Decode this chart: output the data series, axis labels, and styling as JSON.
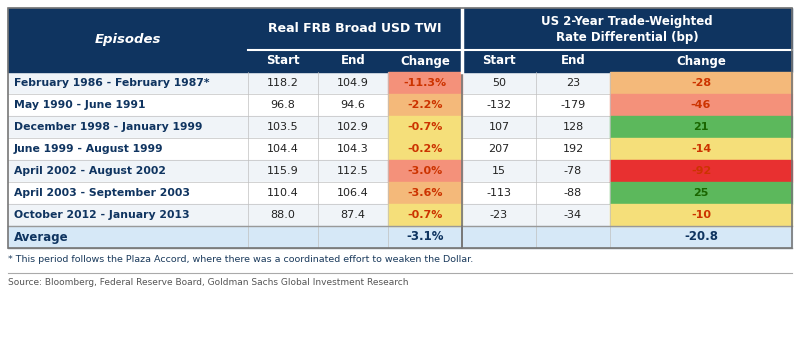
{
  "header_bg": "#0f3460",
  "header_text": "#ffffff",
  "avg_bg": "#d6e8f7",
  "footnote": "* This period follows the Plaza Accord, where there was a coordinated effort to weaken the Dollar.",
  "source": "Source: Bloomberg, Federal Reserve Board, Goldman Sachs Global Investment Research",
  "episodes": [
    "February 1986 - February 1987*",
    "May 1990 - June 1991",
    "December 1998 - January 1999",
    "June 1999 - August 1999",
    "April 2002 - August 2002",
    "April 2003 - September 2003",
    "October 2012 - January 2013"
  ],
  "twi_start": [
    "118.2",
    "96.8",
    "103.5",
    "104.4",
    "115.9",
    "110.4",
    "88.0"
  ],
  "twi_end": [
    "104.9",
    "94.6",
    "102.9",
    "104.3",
    "112.5",
    "106.4",
    "87.4"
  ],
  "twi_change": [
    "-11.3%",
    "-2.2%",
    "-0.7%",
    "-0.2%",
    "-3.0%",
    "-3.6%",
    "-0.7%"
  ],
  "twi_change_colors": [
    "#f4917a",
    "#f4b97a",
    "#f5df7a",
    "#f5df7a",
    "#f4917a",
    "#f4b97a",
    "#f5df7a"
  ],
  "rate_start": [
    "50",
    "-132",
    "107",
    "207",
    "15",
    "-113",
    "-23"
  ],
  "rate_end": [
    "23",
    "-179",
    "128",
    "192",
    "-78",
    "-88",
    "-34"
  ],
  "rate_change": [
    "-28",
    "-46",
    "21",
    "-14",
    "-92",
    "25",
    "-10"
  ],
  "rate_change_colors": [
    "#f4b97a",
    "#f4917a",
    "#5cb85c",
    "#f5df7a",
    "#e83030",
    "#5cb85c",
    "#f5df7a"
  ],
  "rate_change_text_colors": [
    "#cc3300",
    "#cc3300",
    "#1a6600",
    "#cc3300",
    "#cc3300",
    "#1a6600",
    "#cc3300"
  ],
  "twi_change_text_colors": [
    "#cc3300",
    "#cc3300",
    "#cc3300",
    "#cc3300",
    "#cc3300",
    "#cc3300",
    "#cc3300"
  ],
  "avg_twi_change": "-3.1%",
  "avg_rate_change": "-20.8",
  "row_bg": [
    "#f0f4f8",
    "#ffffff",
    "#f0f4f8",
    "#ffffff",
    "#f0f4f8",
    "#ffffff",
    "#f0f4f8"
  ]
}
